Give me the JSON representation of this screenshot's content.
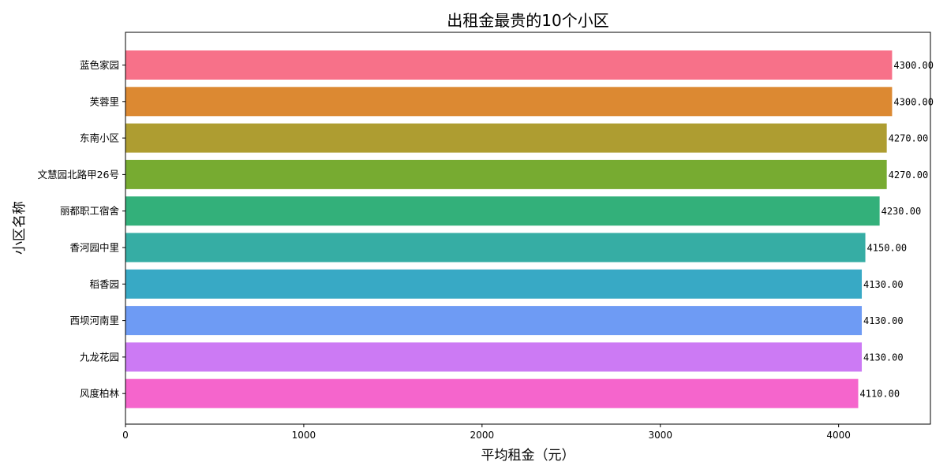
{
  "chart_data": {
    "type": "bar",
    "orientation": "horizontal",
    "title": "出租金最贵的10个小区",
    "xlabel": "平均租金（元）",
    "ylabel": "小区名称",
    "xlim": [
      0,
      4515
    ],
    "xticks": [
      0,
      1000,
      2000,
      3000,
      4000
    ],
    "grid": false,
    "categories": [
      "蓝色家园",
      "芙蓉里",
      "东南小区",
      "文慧园北路甲26号",
      "丽都职工宿舍",
      "香河园中里",
      "稻香园",
      "西坝河南里",
      "九龙花园",
      "风度柏林"
    ],
    "values": [
      4300,
      4300,
      4270,
      4270,
      4230,
      4150,
      4130,
      4130,
      4130,
      4110
    ],
    "value_labels": [
      "4300.00",
      "4300.00",
      "4270.00",
      "4270.00",
      "4230.00",
      "4150.00",
      "4130.00",
      "4130.00",
      "4130.00",
      "4110.00"
    ],
    "colors": [
      "#f77189",
      "#dc8932",
      "#ae9d31",
      "#77ab31",
      "#33b07a",
      "#36ada4",
      "#38a9c5",
      "#6e9bf4",
      "#cc7af4",
      "#f565cc"
    ]
  }
}
